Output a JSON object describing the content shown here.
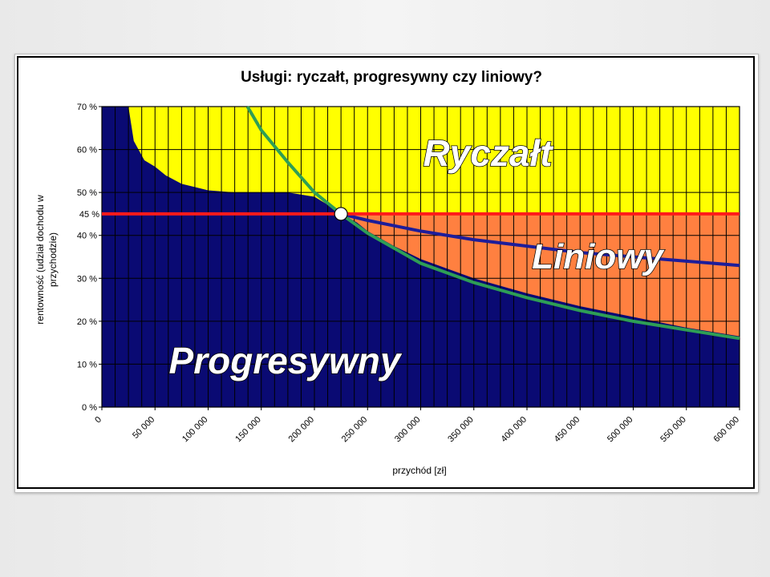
{
  "chart_data": {
    "type": "area",
    "title": "Usługi: ryczałt, progresywny czy liniowy?",
    "xlabel": "przychód [zł]",
    "ylabel_lines": [
      "rentowność (udział dochodu w",
      "przychodzie)"
    ],
    "xlim": [
      0,
      600000
    ],
    "ylim": [
      0,
      0.7
    ],
    "x_ticks": [
      0,
      50000,
      100000,
      150000,
      200000,
      250000,
      300000,
      350000,
      400000,
      450000,
      500000,
      550000,
      600000
    ],
    "x_tick_labels": [
      "0",
      "50 000",
      "100 000",
      "150 000",
      "200 000",
      "250 000",
      "300 000",
      "350 000",
      "400 000",
      "450 000",
      "500 000",
      "550 000",
      "600 000"
    ],
    "y_ticks": [
      0,
      0.1,
      0.2,
      0.3,
      0.4,
      0.5,
      0.6,
      0.7
    ],
    "y_tick_labels": [
      "0 %",
      "10 %",
      "20 %",
      "30 %",
      "40 %",
      "50 %",
      "60 %",
      "70 %"
    ],
    "reference_line": {
      "y": 0.45,
      "label": "45 %",
      "color": "#ff1a1a"
    },
    "grid": true,
    "series": [
      {
        "region_label": "Progresywny",
        "color": "#0a0a73",
        "x": [
          0,
          10000,
          15000,
          20000,
          25000,
          30000,
          40000,
          50000,
          60000,
          75000,
          100000,
          125000,
          150000,
          175000,
          200000,
          210000,
          220000,
          225000,
          240000,
          250000,
          275000,
          300000,
          350000,
          400000,
          450000,
          500000,
          550000,
          600000
        ],
        "y": [
          0.7,
          0.7,
          0.7,
          0.7,
          0.7,
          0.62,
          0.575,
          0.56,
          0.54,
          0.52,
          0.505,
          0.5,
          0.5,
          0.5,
          0.49,
          0.475,
          0.46,
          0.45,
          0.43,
          0.41,
          0.375,
          0.345,
          0.3,
          0.265,
          0.235,
          0.21,
          0.185,
          0.165
        ]
      },
      {
        "region_label": "Liniowy",
        "color": "#0a0a73",
        "x": [
          225000,
          250000,
          300000,
          350000,
          400000,
          450000,
          500000,
          550000,
          600000
        ],
        "y": [
          0.45,
          0.435,
          0.41,
          0.39,
          0.375,
          0.36,
          0.35,
          0.34,
          0.33
        ]
      },
      {
        "region_label": "Ryczałt",
        "color": "#2e9e55",
        "x": [
          137000,
          150000,
          175000,
          200000,
          225000,
          250000,
          300000,
          350000,
          400000,
          450000,
          500000,
          550000,
          600000
        ],
        "y": [
          0.7,
          0.645,
          0.57,
          0.5,
          0.45,
          0.405,
          0.335,
          0.29,
          0.255,
          0.225,
          0.2,
          0.18,
          0.16
        ]
      }
    ],
    "intersection": {
      "x": 225000,
      "y": 0.45
    },
    "colors": {
      "ryczalt_region": "#ffff00",
      "liniowy_region": "#ff8040",
      "progresywny_region": "#0a0a73",
      "grid": "#000000"
    }
  }
}
